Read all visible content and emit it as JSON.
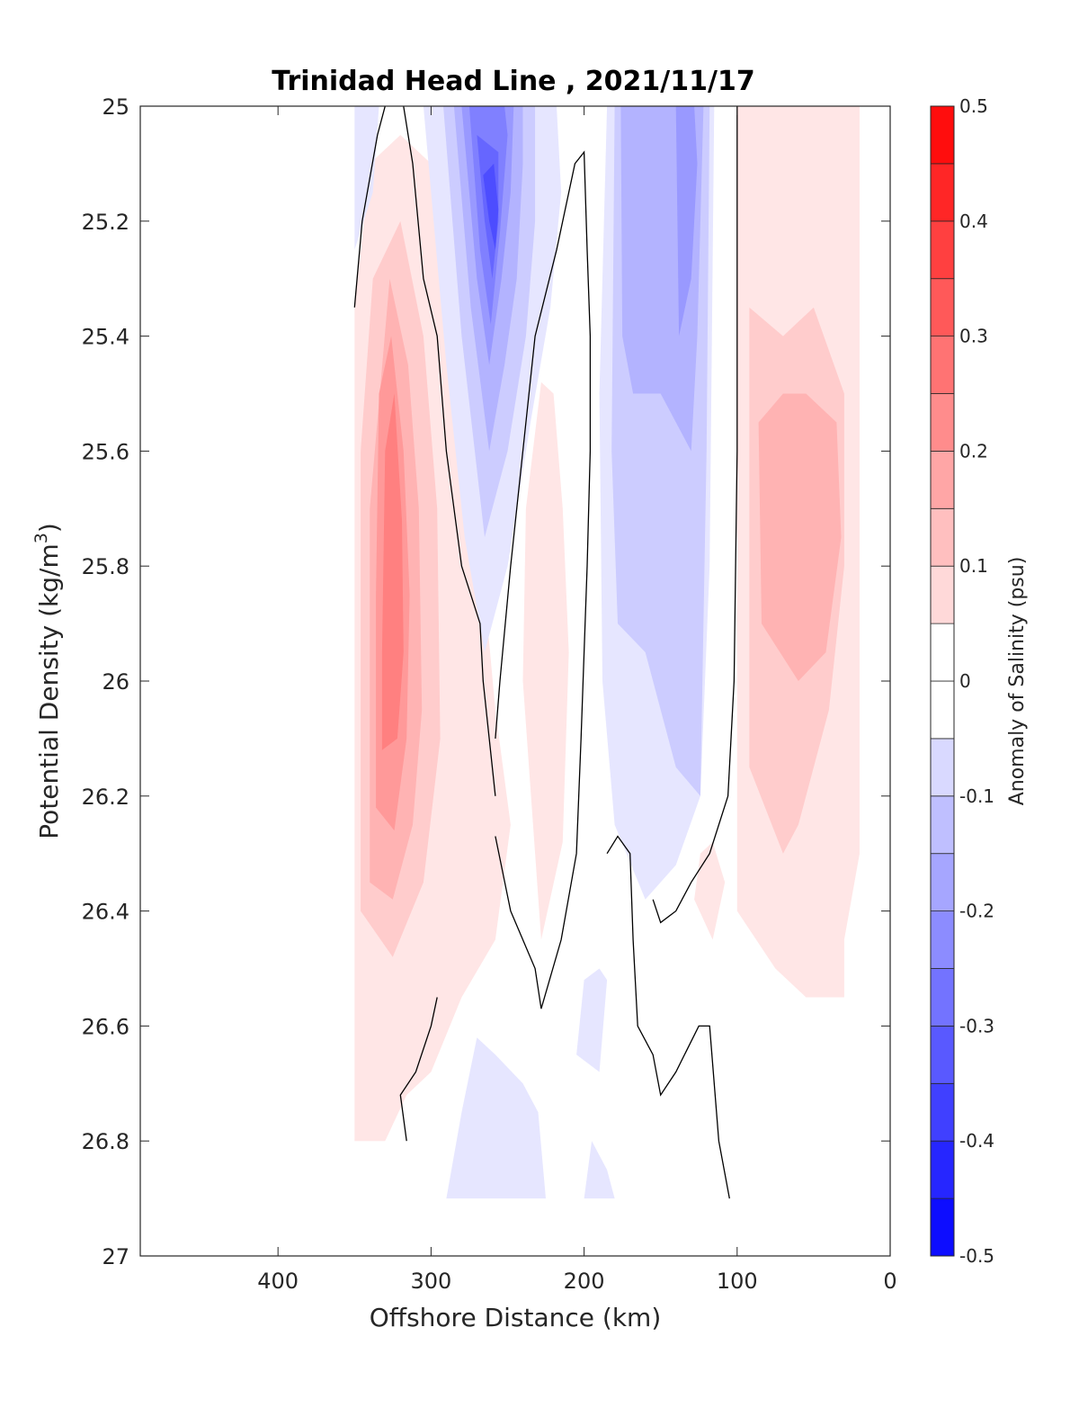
{
  "chart_data": {
    "type": "contourf",
    "title": "Trinidad Head Line , 2021/11/17",
    "xlabel": "Offshore Distance (km)",
    "ylabel_base": "Potential Density (kg/m",
    "ylabel_sup": "3",
    "ylabel_end": ")",
    "xlim": [
      490,
      0
    ],
    "ylim": [
      25,
      27
    ],
    "y_reversed": true,
    "x_ticks": [
      400,
      300,
      200,
      100,
      0
    ],
    "x_tick_labels": [
      "400",
      "300",
      "200",
      "100",
      "0"
    ],
    "y_ticks": [
      25,
      25.2,
      25.4,
      25.6,
      25.8,
      26,
      26.2,
      26.4,
      26.6,
      26.8,
      27
    ],
    "y_tick_labels": [
      "25",
      "25.2",
      "25.4",
      "25.6",
      "25.8",
      "26",
      "26.2",
      "26.4",
      "26.6",
      "26.8",
      "27"
    ],
    "colorbar": {
      "label": "Anomaly of Salinity (psu)",
      "range": [
        -0.5,
        0.5
      ],
      "step": 0.05,
      "ticks": [
        -0.5,
        -0.4,
        -0.3,
        -0.2,
        -0.1,
        0,
        0.1,
        0.2,
        0.3,
        0.4,
        0.5
      ],
      "tick_labels": [
        "-0.5",
        "-0.4",
        "-0.3",
        "-0.2",
        "-0.1",
        "0",
        "0.1",
        "0.2",
        "0.3",
        "0.4",
        "0.5"
      ],
      "colormap": "blue-white-red",
      "low_color": "#0000ff",
      "high_color": "#ff0000"
    },
    "zero_contour_color": "#000000",
    "fields": [
      {
        "level": 0.05,
        "polygon": [
          [
            350,
            25.35
          ],
          [
            350,
            26.8
          ],
          [
            330,
            26.8
          ],
          [
            316,
            26.72
          ],
          [
            300,
            26.68
          ],
          [
            280,
            26.55
          ],
          [
            258,
            26.45
          ],
          [
            248,
            26.25
          ],
          [
            258,
            26.05
          ],
          [
            270,
            25.7
          ],
          [
            280,
            25.4
          ],
          [
            300,
            25.1
          ],
          [
            320,
            25.05
          ],
          [
            340,
            25.1
          ]
        ]
      },
      {
        "level": 0.1,
        "polygon": [
          [
            346,
            25.6
          ],
          [
            346,
            26.4
          ],
          [
            325,
            26.48
          ],
          [
            305,
            26.35
          ],
          [
            294,
            26.1
          ],
          [
            296,
            25.7
          ],
          [
            305,
            25.4
          ],
          [
            320,
            25.2
          ],
          [
            338,
            25.3
          ]
        ]
      },
      {
        "level": 0.15,
        "polygon": [
          [
            340,
            25.7
          ],
          [
            340,
            26.35
          ],
          [
            325,
            26.38
          ],
          [
            312,
            26.25
          ],
          [
            306,
            26.05
          ],
          [
            308,
            25.7
          ],
          [
            315,
            25.45
          ],
          [
            327,
            25.3
          ]
        ]
      },
      {
        "level": 0.2,
        "polygon": [
          [
            336,
            25.85
          ],
          [
            336,
            26.22
          ],
          [
            324,
            26.26
          ],
          [
            316,
            26.1
          ],
          [
            314,
            25.85
          ],
          [
            318,
            25.6
          ],
          [
            326,
            25.4
          ],
          [
            334,
            25.5
          ]
        ]
      },
      {
        "level": 0.25,
        "polygon": [
          [
            332,
            25.95
          ],
          [
            332,
            26.12
          ],
          [
            322,
            26.1
          ],
          [
            318,
            25.95
          ],
          [
            319,
            25.72
          ],
          [
            324,
            25.5
          ],
          [
            330,
            25.6
          ]
        ]
      },
      {
        "level": 0.05,
        "polygon": [
          [
            240,
            26.0
          ],
          [
            228,
            26.45
          ],
          [
            214,
            26.28
          ],
          [
            210,
            25.95
          ],
          [
            214,
            25.7
          ],
          [
            220,
            25.5
          ],
          [
            228,
            25.48
          ],
          [
            238,
            25.7
          ]
        ]
      },
      {
        "level": 0.05,
        "polygon": [
          [
            128,
            26.38
          ],
          [
            116,
            26.45
          ],
          [
            108,
            26.35
          ],
          [
            116,
            26.28
          ],
          [
            124,
            26.3
          ]
        ]
      },
      {
        "level": 0.05,
        "polygon": [
          [
            100,
            25.0
          ],
          [
            20,
            25.0
          ],
          [
            20,
            26.3
          ],
          [
            30,
            26.45
          ],
          [
            30,
            26.55
          ],
          [
            55,
            26.55
          ],
          [
            75,
            26.5
          ],
          [
            100,
            26.4
          ]
        ]
      },
      {
        "level": 0.1,
        "polygon": [
          [
            92,
            25.35
          ],
          [
            92,
            26.15
          ],
          [
            70,
            26.3
          ],
          [
            60,
            26.25
          ],
          [
            40,
            26.05
          ],
          [
            30,
            25.8
          ],
          [
            30,
            25.5
          ],
          [
            50,
            25.35
          ],
          [
            70,
            25.4
          ]
        ]
      },
      {
        "level": 0.15,
        "polygon": [
          [
            86,
            25.55
          ],
          [
            84,
            25.9
          ],
          [
            60,
            26.0
          ],
          [
            42,
            25.95
          ],
          [
            32,
            25.75
          ],
          [
            35,
            25.55
          ],
          [
            55,
            25.5
          ],
          [
            70,
            25.5
          ]
        ]
      },
      {
        "level": -0.05,
        "polygon": [
          [
            350,
            25.0
          ],
          [
            350,
            25.25
          ],
          [
            338,
            25.15
          ],
          [
            334,
            25.0
          ]
        ]
      },
      {
        "level": -0.05,
        "polygon": [
          [
            305,
            25.0
          ],
          [
            290,
            25.45
          ],
          [
            278,
            25.75
          ],
          [
            265,
            25.95
          ],
          [
            250,
            25.8
          ],
          [
            235,
            25.55
          ],
          [
            222,
            25.35
          ],
          [
            215,
            25.15
          ],
          [
            218,
            25.0
          ]
        ]
      },
      {
        "level": -0.1,
        "polygon": [
          [
            292,
            25.0
          ],
          [
            280,
            25.4
          ],
          [
            265,
            25.75
          ],
          [
            250,
            25.6
          ],
          [
            238,
            25.4
          ],
          [
            232,
            25.2
          ],
          [
            232,
            25.0
          ]
        ]
      },
      {
        "level": -0.15,
        "polygon": [
          [
            285,
            25.0
          ],
          [
            274,
            25.35
          ],
          [
            262,
            25.6
          ],
          [
            252,
            25.45
          ],
          [
            244,
            25.3
          ],
          [
            240,
            25.1
          ],
          [
            240,
            25.0
          ]
        ]
      },
      {
        "level": -0.2,
        "polygon": [
          [
            280,
            25.0
          ],
          [
            270,
            25.3
          ],
          [
            262,
            25.45
          ],
          [
            254,
            25.3
          ],
          [
            248,
            25.15
          ],
          [
            246,
            25.0
          ]
        ]
      },
      {
        "level": -0.25,
        "polygon": [
          [
            275,
            25.0
          ],
          [
            268,
            25.25
          ],
          [
            261,
            25.38
          ],
          [
            255,
            25.22
          ],
          [
            250,
            25.05
          ],
          [
            252,
            25.0
          ]
        ]
      },
      {
        "level": -0.3,
        "polygon": [
          [
            270,
            25.05
          ],
          [
            265,
            25.2
          ],
          [
            260,
            25.3
          ],
          [
            256,
            25.2
          ],
          [
            256,
            25.08
          ]
        ]
      },
      {
        "level": -0.35,
        "polygon": [
          [
            266,
            25.12
          ],
          [
            262,
            25.2
          ],
          [
            258,
            25.25
          ],
          [
            256,
            25.18
          ],
          [
            259,
            25.1
          ]
        ]
      },
      {
        "level": -0.05,
        "polygon": [
          [
            185,
            25.0
          ],
          [
            190,
            25.5
          ],
          [
            188,
            26.0
          ],
          [
            180,
            26.25
          ],
          [
            160,
            26.38
          ],
          [
            140,
            26.32
          ],
          [
            124,
            26.2
          ],
          [
            118,
            25.8
          ],
          [
            115,
            25.0
          ]
        ]
      },
      {
        "level": -0.1,
        "polygon": [
          [
            180,
            25.0
          ],
          [
            182,
            25.6
          ],
          [
            178,
            25.9
          ],
          [
            160,
            25.95
          ],
          [
            140,
            26.15
          ],
          [
            124,
            26.2
          ],
          [
            120,
            25.6
          ],
          [
            118,
            25.0
          ]
        ]
      },
      {
        "level": -0.15,
        "polygon": [
          [
            176,
            25.0
          ],
          [
            175,
            25.4
          ],
          [
            168,
            25.5
          ],
          [
            150,
            25.5
          ],
          [
            130,
            25.6
          ],
          [
            126,
            25.4
          ],
          [
            122,
            25.0
          ]
        ]
      },
      {
        "level": -0.2,
        "polygon": [
          [
            140,
            25.0
          ],
          [
            138,
            25.4
          ],
          [
            130,
            25.3
          ],
          [
            126,
            25.1
          ],
          [
            128,
            25.0
          ]
        ]
      },
      {
        "level": -0.05,
        "polygon": [
          [
            280,
            26.75
          ],
          [
            290,
            26.9
          ],
          [
            225,
            26.9
          ],
          [
            230,
            26.75
          ],
          [
            240,
            26.7
          ],
          [
            258,
            26.65
          ],
          [
            270,
            26.62
          ]
        ]
      },
      {
        "level": -0.05,
        "polygon": [
          [
            190,
            26.5
          ],
          [
            185,
            26.52
          ],
          [
            190,
            26.68
          ],
          [
            205,
            26.65
          ],
          [
            200,
            26.52
          ]
        ]
      },
      {
        "level": -0.05,
        "polygon": [
          [
            200,
            26.9
          ],
          [
            180,
            26.9
          ],
          [
            185,
            26.85
          ],
          [
            195,
            26.8
          ]
        ]
      }
    ],
    "zero_contours": [
      [
        [
          350,
          25.35
        ],
        [
          345,
          25.2
        ],
        [
          335,
          25.05
        ],
        [
          330,
          25.0
        ]
      ],
      [
        [
          318,
          25.0
        ],
        [
          312,
          25.1
        ],
        [
          305,
          25.3
        ],
        [
          296,
          25.4
        ],
        [
          290,
          25.6
        ],
        [
          280,
          25.8
        ],
        [
          268,
          25.9
        ],
        [
          266,
          26.0
        ],
        [
          262,
          26.1
        ],
        [
          258,
          26.2
        ]
      ],
      [
        [
          258,
          26.27
        ],
        [
          248,
          26.4
        ],
        [
          232,
          26.5
        ],
        [
          228,
          26.57
        ],
        [
          215,
          26.45
        ],
        [
          205,
          26.3
        ],
        [
          202,
          26.1
        ],
        [
          198,
          25.8
        ],
        [
          196,
          25.6
        ],
        [
          196,
          25.4
        ],
        [
          198,
          25.25
        ],
        [
          200,
          25.08
        ],
        [
          206,
          25.1
        ],
        [
          218,
          25.25
        ],
        [
          232,
          25.4
        ],
        [
          240,
          25.6
        ],
        [
          248,
          25.8
        ],
        [
          255,
          26.0
        ],
        [
          258,
          26.1
        ]
      ],
      [
        [
          185,
          26.3
        ],
        [
          178,
          26.27
        ],
        [
          170,
          26.3
        ],
        [
          168,
          26.45
        ],
        [
          165,
          26.6
        ],
        [
          155,
          26.65
        ],
        [
          150,
          26.72
        ],
        [
          140,
          26.68
        ],
        [
          125,
          26.6
        ],
        [
          118,
          26.6
        ],
        [
          112,
          26.8
        ],
        [
          105,
          26.9
        ]
      ],
      [
        [
          100,
          25.0
        ],
        [
          100,
          25.6
        ],
        [
          102,
          26.0
        ],
        [
          106,
          26.2
        ],
        [
          118,
          26.3
        ],
        [
          130,
          26.35
        ],
        [
          140,
          26.4
        ],
        [
          150,
          26.42
        ],
        [
          155,
          26.38
        ]
      ],
      [
        [
          316,
          26.8
        ],
        [
          320,
          26.72
        ],
        [
          310,
          26.68
        ],
        [
          300,
          26.6
        ],
        [
          296,
          26.55
        ]
      ]
    ]
  }
}
